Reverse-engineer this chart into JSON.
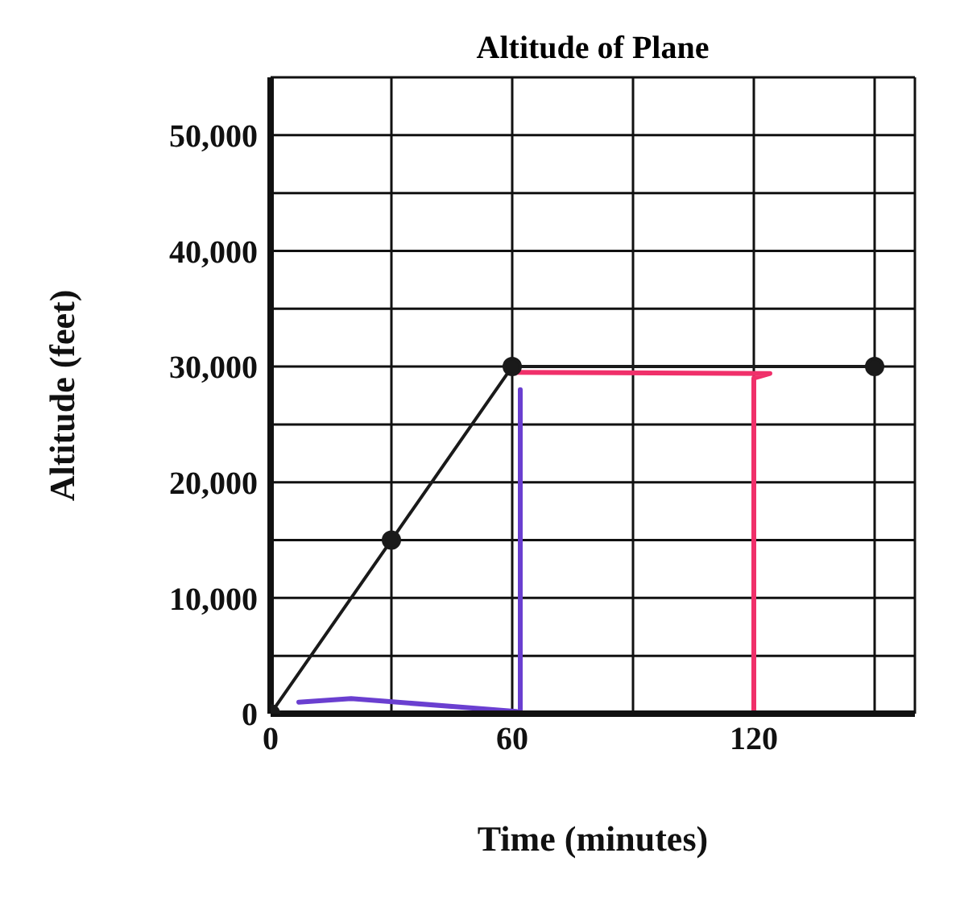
{
  "chart_data": {
    "type": "line",
    "title": "Altitude of Plane",
    "xlabel": "Time (minutes)",
    "ylabel": "Altitude (feet)",
    "xlim": [
      0,
      160
    ],
    "xticks": [
      0,
      {
        "value": 30,
        "label": null
      },
      60,
      {
        "value": 90,
        "label": null
      },
      120,
      {
        "value": 150,
        "label": null
      }
    ],
    "ylim": [
      0,
      55000
    ],
    "yticks": [
      0,
      {
        "value": 5000,
        "label": null
      },
      {
        "value": 10000,
        "label": "10,000"
      },
      {
        "value": 15000,
        "label": null
      },
      {
        "value": 20000,
        "label": "20,000"
      },
      {
        "value": 25000,
        "label": null
      },
      {
        "value": 30000,
        "label": "30,000"
      },
      {
        "value": 35000,
        "label": null
      },
      {
        "value": 40000,
        "label": "40,000"
      },
      {
        "value": 45000,
        "label": null
      },
      {
        "value": 50000,
        "label": "50,000"
      }
    ],
    "grid": true,
    "series": [
      {
        "color": "#6a3fd0",
        "marker": "none",
        "x": [
          7,
          20,
          61,
          62,
          62
        ],
        "values": [
          1000,
          1300,
          200,
          0,
          28000
        ]
      },
      {
        "color": "#f0306a",
        "marker": "none",
        "x": [
          60,
          124,
          120,
          120
        ],
        "values": [
          29500,
          29400,
          29000,
          0
        ]
      },
      {
        "color": "#1a1a1a",
        "marker": "circle",
        "x": [
          0,
          30,
          60,
          150
        ],
        "values": [
          0,
          15000,
          30000,
          30000
        ]
      }
    ]
  }
}
